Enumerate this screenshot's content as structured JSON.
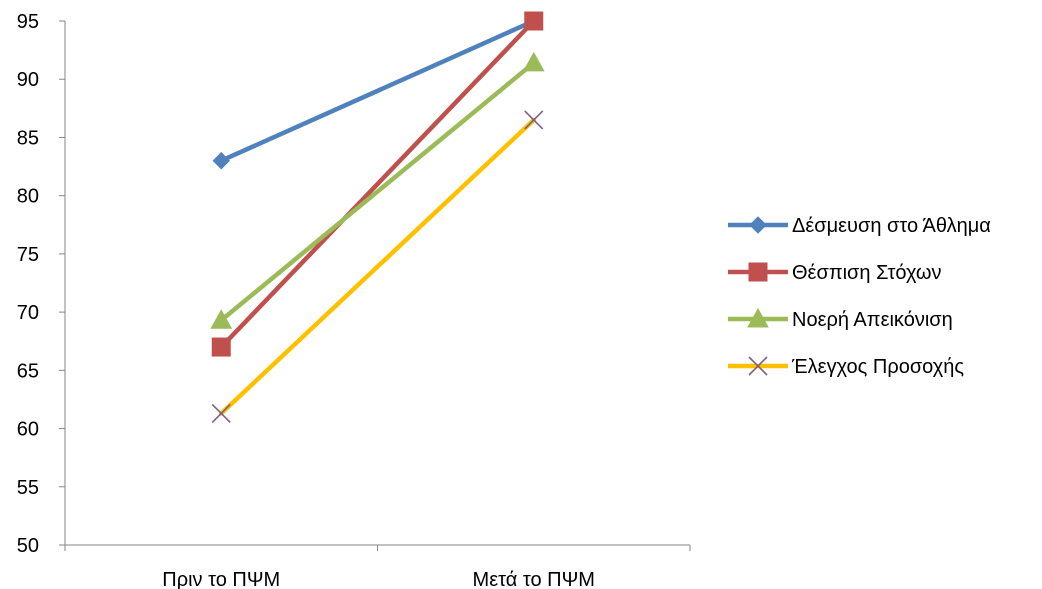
{
  "chart_data": {
    "type": "line",
    "categories": [
      "Πριν το ΠΨΜ",
      "Μετά το ΠΨΜ"
    ],
    "ylim": [
      50,
      95
    ],
    "yticks": [
      50,
      55,
      60,
      65,
      70,
      75,
      80,
      85,
      90,
      95
    ],
    "grid": false,
    "legend_position": "right",
    "series": [
      {
        "name": "Δέσμευση στο Άθλημα",
        "values": [
          83,
          95
        ],
        "color": "#4F81BD",
        "marker": "diamond"
      },
      {
        "name": "Θέσπιση Στόχων",
        "values": [
          67,
          95
        ],
        "color": "#C0504D",
        "marker": "square"
      },
      {
        "name": "Νοερή Απεικόνιση",
        "values": [
          69.3,
          91.4
        ],
        "color": "#9BBB59",
        "marker": "triangle"
      },
      {
        "name": "Έλεγχος Προσοχής",
        "values": [
          61.3,
          86.5
        ],
        "color": "#FFC000",
        "marker": "x",
        "marker_color": "#7F6084"
      }
    ]
  }
}
